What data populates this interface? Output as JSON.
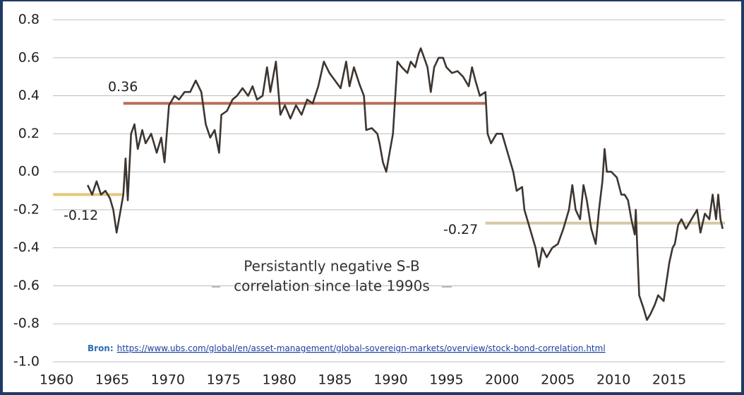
{
  "chart_data": {
    "type": "line",
    "line_color": "#3d3530",
    "grid": true,
    "xlim": [
      1960,
      2020
    ],
    "ylim": [
      -1.0,
      0.8
    ],
    "xticks": [
      1960,
      1965,
      1970,
      1975,
      1980,
      1985,
      1990,
      1995,
      2000,
      2005,
      2010,
      2015
    ],
    "yticks": [
      0.8,
      0.6,
      0.4,
      0.2,
      {
        "value": 0,
        "label": "0.0"
      },
      -0.2,
      -0.4,
      -0.6,
      -0.8,
      {
        "value": -1,
        "label": "-1.0"
      }
    ],
    "x": [
      1962.8,
      1963.2,
      1963.6,
      1964,
      1964.4,
      1964.8,
      1965.1,
      1965.4,
      1965.7,
      1966,
      1966.2,
      1966.4,
      1966.7,
      1967,
      1967.3,
      1967.7,
      1968,
      1968.5,
      1969,
      1969.4,
      1969.7,
      1970.1,
      1970.6,
      1971,
      1971.5,
      1972,
      1972.5,
      1973,
      1973.4,
      1973.8,
      1974.2,
      1974.6,
      1974.8,
      1975.3,
      1975.8,
      1976.2,
      1976.7,
      1977.2,
      1977.6,
      1978,
      1978.5,
      1978.9,
      1979.2,
      1979.7,
      1980.1,
      1980.5,
      1981,
      1981.5,
      1982,
      1982.5,
      1983,
      1983.5,
      1984,
      1984.5,
      1985,
      1985.5,
      1986,
      1986.3,
      1986.7,
      1987.2,
      1987.6,
      1987.8,
      1988.3,
      1988.8,
      1989,
      1989.3,
      1989.6,
      1989.9,
      1990.2,
      1990.6,
      1991,
      1991.5,
      1991.8,
      1992.2,
      1992.5,
      1992.7,
      1993,
      1993.3,
      1993.6,
      1993.9,
      1994.3,
      1994.7,
      1995,
      1995.5,
      1996,
      1996.5,
      1997,
      1997.3,
      1997.6,
      1998,
      1998.5,
      1998.7,
      1999,
      1999.5,
      2000,
      2000.5,
      2001,
      2001.3,
      2001.8,
      2002,
      2002.5,
      2003,
      2003.3,
      2003.6,
      2004,
      2004.5,
      2005,
      2005.5,
      2006,
      2006.3,
      2006.6,
      2007,
      2007.3,
      2007.6,
      2008,
      2008.4,
      2008.7,
      2009,
      2009.2,
      2009.4,
      2009.8,
      2010.3,
      2010.7,
      2011,
      2011.3,
      2011.6,
      2011.9,
      2012,
      2012.3,
      2012.7,
      2013,
      2013.3,
      2013.7,
      2014,
      2014.5,
      2015,
      2015.3,
      2015.5,
      2015.8,
      2016.1,
      2016.5,
      2017,
      2017.5,
      2017.8,
      2018.2,
      2018.6,
      2018.9,
      2019.2,
      2019.4,
      2019.6,
      2019.8
    ],
    "values": [
      -0.07,
      -0.12,
      -0.05,
      -0.12,
      -0.1,
      -0.14,
      -0.2,
      -0.32,
      -0.22,
      -0.12,
      0.07,
      -0.15,
      0.2,
      0.25,
      0.12,
      0.22,
      0.15,
      0.2,
      0.1,
      0.18,
      0.05,
      0.35,
      0.4,
      0.38,
      0.42,
      0.42,
      0.48,
      0.42,
      0.25,
      0.18,
      0.22,
      0.1,
      0.3,
      0.32,
      0.38,
      0.4,
      0.44,
      0.4,
      0.45,
      0.38,
      0.4,
      0.55,
      0.42,
      0.58,
      0.3,
      0.35,
      0.28,
      0.35,
      0.3,
      0.38,
      0.36,
      0.45,
      0.58,
      0.52,
      0.48,
      0.44,
      0.58,
      0.45,
      0.55,
      0.46,
      0.4,
      0.22,
      0.23,
      0.2,
      0.15,
      0.05,
      0.0,
      0.1,
      0.2,
      0.58,
      0.55,
      0.52,
      0.58,
      0.55,
      0.62,
      0.65,
      0.6,
      0.55,
      0.42,
      0.55,
      0.6,
      0.6,
      0.55,
      0.52,
      0.53,
      0.5,
      0.45,
      0.55,
      0.48,
      0.4,
      0.42,
      0.2,
      0.15,
      0.2,
      0.2,
      0.1,
      0.0,
      -0.1,
      -0.08,
      -0.2,
      -0.3,
      -0.4,
      -0.5,
      -0.4,
      -0.45,
      -0.4,
      -0.38,
      -0.3,
      -0.2,
      -0.07,
      -0.2,
      -0.25,
      -0.07,
      -0.15,
      -0.3,
      -0.38,
      -0.2,
      -0.05,
      0.12,
      0.0,
      0.0,
      -0.03,
      -0.12,
      -0.12,
      -0.15,
      -0.25,
      -0.33,
      -0.2,
      -0.65,
      -0.72,
      -0.78,
      -0.75,
      -0.7,
      -0.65,
      -0.68,
      -0.48,
      -0.4,
      -0.38,
      -0.28,
      -0.25,
      -0.3,
      -0.25,
      -0.2,
      -0.32,
      -0.22,
      -0.25,
      -0.12,
      -0.25,
      -0.12,
      -0.25,
      -0.3
    ],
    "reference_lines": [
      {
        "value": -0.12,
        "from": 1959.7,
        "to": 1966,
        "color": "#e3c77c"
      },
      {
        "value": 0.36,
        "from": 1966,
        "to": 1998.5,
        "color": "#b8705c"
      },
      {
        "value": -0.27,
        "from": 1998.5,
        "to": 2020,
        "color": "#d6c8a6"
      }
    ],
    "annotation": [
      "Persistantly negative S-B",
      "correlation since late 1990s"
    ],
    "source_label": "Bron:",
    "source_url": "https://www.ubs.com/global/en/asset-management/global-sovereign-markets/overview/stock-bond-correlation.html"
  }
}
